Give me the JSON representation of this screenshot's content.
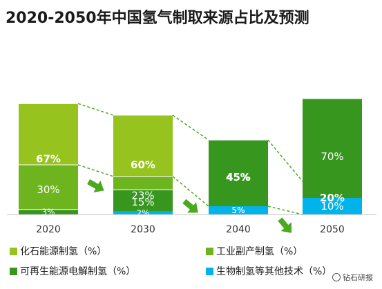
{
  "title": "2020-2050年中国氢气制取来源占比及预测",
  "chart_data": {
    "type": "bar",
    "stacked": true,
    "categories": [
      "2020",
      "2030",
      "2040",
      "2050"
    ],
    "series": [
      {
        "name": "化石能源制氢（%）",
        "values": [
          67,
          60,
          45,
          20
        ],
        "labels": [
          "67%",
          "60%",
          "45%",
          "20%"
        ],
        "color": "#96c31e",
        "label_color": "#ffffff"
      },
      {
        "name": "工业副产制氢（%）",
        "values": [
          30,
          23,
          5,
          0
        ],
        "labels": [
          "30%",
          "23%",
          "5%",
          ""
        ],
        "color": "#6eb41e",
        "label_color": "#ffffff"
      },
      {
        "name": "可再生能源电解制氢（%）",
        "values": [
          3,
          15,
          45,
          70
        ],
        "labels": [
          "3%",
          "15%",
          "45%",
          "70%"
        ],
        "color": "#37961e",
        "label_color": "#ffffff"
      },
      {
        "name": "生物制氢等其他技术（%）",
        "values": [
          0,
          2,
          5,
          10
        ],
        "labels": [
          "",
          "2%",
          "5%",
          "10%"
        ],
        "color": "#00b4eb",
        "label_color": "#ffffff"
      }
    ],
    "ylim": [
      0,
      100
    ],
    "grid": false,
    "legend_position": "bottom",
    "trend_line_color": "#4ca91e",
    "arrow_color": "#4ca91e"
  },
  "watermark": "钻石研报"
}
